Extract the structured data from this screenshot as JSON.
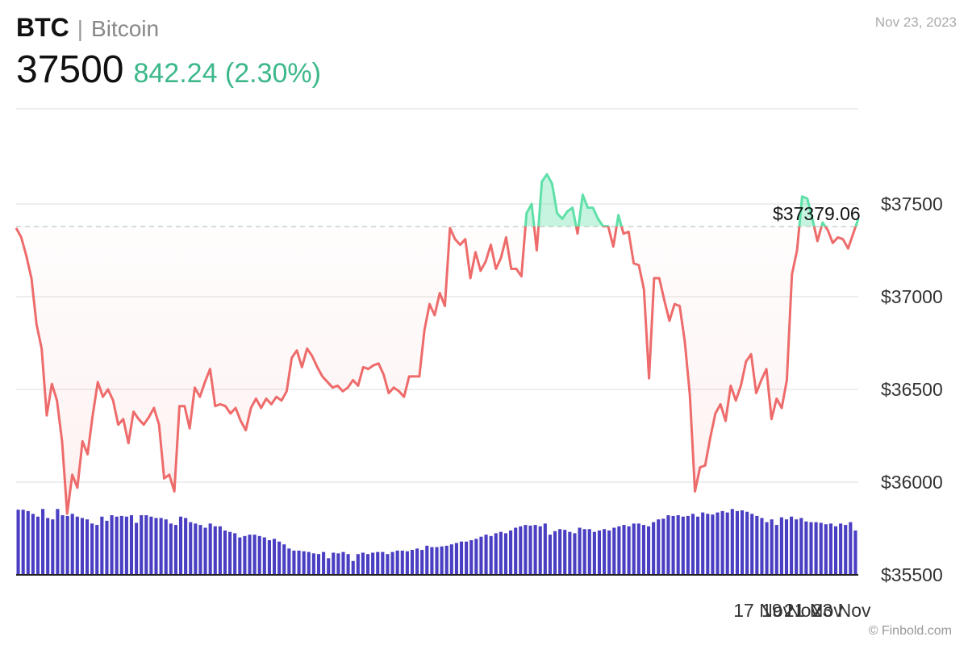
{
  "header": {
    "ticker": "BTC",
    "separator": "|",
    "name": "Bitcoin",
    "price": "37500",
    "change": "842.24 (2.30%)",
    "date": "Nov 23, 2023"
  },
  "credit": "© Finbold.com",
  "colors": {
    "up": "#5fe0a8",
    "down": "#ee6b6b",
    "volume": "#4a3fc2",
    "grid": "#dddddd",
    "change_text": "#3cb88a"
  },
  "chart_data": {
    "type": "line",
    "title": "",
    "xlabel": "",
    "ylabel": "",
    "ylim": [
      35500,
      37700
    ],
    "y_ticks": [
      "$35500",
      "$36000",
      "$36500",
      "$37000",
      "$37500"
    ],
    "y_tick_values": [
      35500,
      36000,
      36500,
      37000,
      37500
    ],
    "x_ticks": [
      "17 Nov",
      "19 Nov",
      "21 Nov",
      "23 Nov"
    ],
    "x_tick_positions": [
      13.3,
      13.8,
      14.2,
      14.7
    ],
    "x_domain": [
      0,
      15
    ],
    "reference": {
      "value": 37379.06,
      "label": "$37379.06"
    },
    "series": [
      {
        "values": [
          37370,
          37320,
          37220,
          37100,
          36850,
          36720,
          36360,
          36530,
          36440,
          36220,
          35830,
          36040,
          35970,
          36220,
          36150,
          36360,
          36540,
          36460,
          36500,
          36440,
          36310,
          36340,
          36210,
          36380,
          36340,
          36310,
          36350,
          36400,
          36310,
          36020,
          36040,
          35950,
          36410,
          36410,
          36290,
          36510,
          36460,
          36540,
          36610,
          36410,
          36420,
          36410,
          36370,
          36400,
          36330,
          36280,
          36400,
          36450,
          36400,
          36450,
          36420,
          36460,
          36440,
          36490,
          36670,
          36710,
          36620,
          36720,
          36680,
          36620,
          36570,
          36540,
          36510,
          36520,
          36490,
          36510,
          36550,
          36520,
          36620,
          36610,
          36630,
          36640,
          36580,
          36480,
          36510,
          36490,
          36460,
          36570,
          36570,
          36570,
          36820,
          36960,
          36900,
          37020,
          36950,
          37370,
          37310,
          37280,
          37310,
          37100,
          37240,
          37140,
          37190,
          37280,
          37150,
          37210,
          37320,
          37150,
          37150,
          37110,
          37450,
          37500,
          37250,
          37620,
          37660,
          37610,
          37450,
          37420,
          37460,
          37480,
          37340,
          37550,
          37480,
          37480,
          37420,
          37380,
          37380,
          37270,
          37440,
          37340,
          37350,
          37180,
          37170,
          37040,
          36560,
          37100,
          37100,
          36980,
          36870,
          36960,
          36950,
          36760,
          36470,
          35950,
          36080,
          36090,
          36240,
          36370,
          36420,
          36330,
          36520,
          36440,
          36520,
          36650,
          36690,
          36480,
          36550,
          36610,
          36340,
          36450,
          36400,
          36550,
          37120,
          37250,
          37540,
          37530,
          37420,
          37300,
          37400,
          37360,
          37290,
          37320,
          37310,
          37260,
          37340,
          37420
        ]
      }
    ],
    "volume": [
      0.94,
      0.94,
      0.92,
      0.88,
      0.84,
      0.95,
      0.82,
      0.8,
      0.95,
      0.86,
      0.85,
      0.88,
      0.84,
      0.82,
      0.8,
      0.74,
      0.72,
      0.84,
      0.78,
      0.86,
      0.84,
      0.85,
      0.84,
      0.86,
      0.75,
      0.86,
      0.86,
      0.84,
      0.82,
      0.82,
      0.8,
      0.74,
      0.72,
      0.84,
      0.82,
      0.76,
      0.74,
      0.72,
      0.68,
      0.74,
      0.7,
      0.7,
      0.64,
      0.62,
      0.6,
      0.54,
      0.56,
      0.58,
      0.58,
      0.56,
      0.54,
      0.5,
      0.52,
      0.48,
      0.44,
      0.38,
      0.35,
      0.35,
      0.34,
      0.33,
      0.31,
      0.3,
      0.33,
      0.24,
      0.32,
      0.31,
      0.33,
      0.3,
      0.2,
      0.3,
      0.32,
      0.3,
      0.32,
      0.33,
      0.33,
      0.3,
      0.33,
      0.35,
      0.35,
      0.34,
      0.36,
      0.38,
      0.36,
      0.42,
      0.4,
      0.4,
      0.41,
      0.42,
      0.44,
      0.46,
      0.48,
      0.48,
      0.5,
      0.52,
      0.55,
      0.58,
      0.56,
      0.6,
      0.62,
      0.6,
      0.64,
      0.68,
      0.7,
      0.72,
      0.71,
      0.72,
      0.7,
      0.74,
      0.58,
      0.63,
      0.66,
      0.65,
      0.62,
      0.6,
      0.68,
      0.66,
      0.66,
      0.62,
      0.64,
      0.66,
      0.64,
      0.68,
      0.7,
      0.72,
      0.7,
      0.74,
      0.74,
      0.72,
      0.7,
      0.76,
      0.8,
      0.81,
      0.86,
      0.85,
      0.86,
      0.84,
      0.85,
      0.88,
      0.84,
      0.9,
      0.88,
      0.87,
      0.9,
      0.92,
      0.9,
      0.95,
      0.92,
      0.93,
      0.91,
      0.88,
      0.85,
      0.82,
      0.76,
      0.8,
      0.72,
      0.83,
      0.8,
      0.84,
      0.8,
      0.82,
      0.77,
      0.76,
      0.76,
      0.75,
      0.73,
      0.74,
      0.7,
      0.74,
      0.72,
      0.76,
      0.64
    ]
  }
}
